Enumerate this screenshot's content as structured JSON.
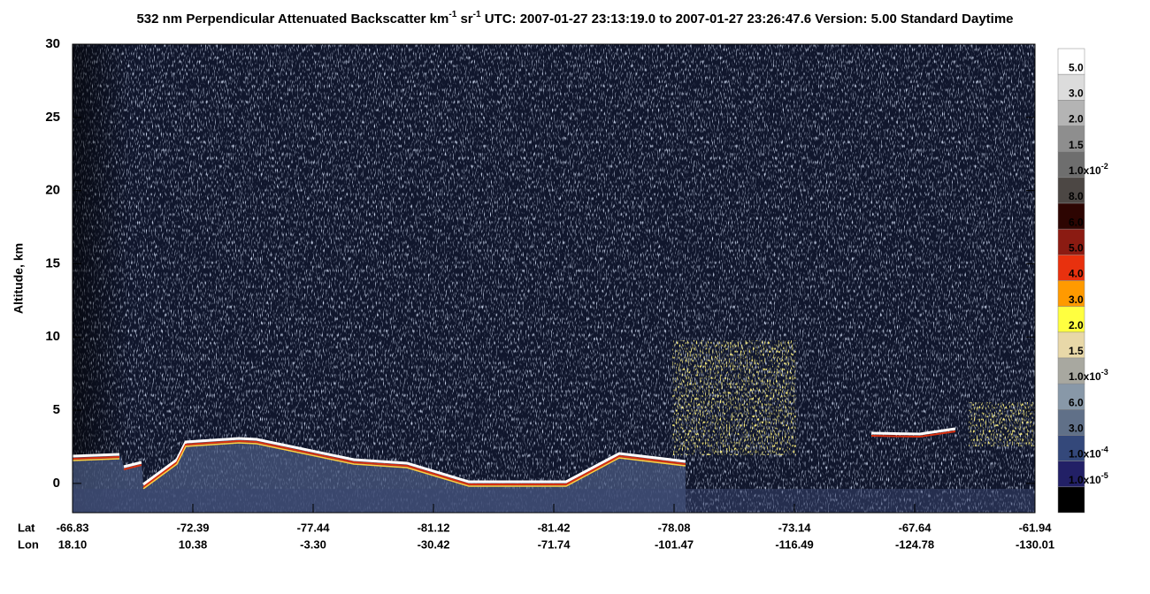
{
  "chart_data": {
    "type": "heatmap",
    "title_parts": [
      {
        "text": "532 nm Perpendicular Attenuated Backscatter km"
      },
      {
        "sup": "-1"
      },
      {
        "text": " sr"
      },
      {
        "sup": "-1"
      },
      {
        "text": "  UTC: 2007-01-27 23:13:19.0 to 2007-01-27 23:26:47.6  Version: 5.00 Standard Daytime"
      }
    ],
    "y_label": "Altitude, km",
    "ylim": [
      -2,
      30
    ],
    "yticks": [
      0,
      5,
      10,
      15,
      20,
      25,
      30
    ],
    "x_row_labels": [
      "Lat",
      "Lon"
    ],
    "xticks": [
      {
        "lat": "-66.83",
        "lon": "18.10"
      },
      {
        "lat": "-72.39",
        "lon": "10.38"
      },
      {
        "lat": "-77.44",
        "lon": "-3.30"
      },
      {
        "lat": "-81.12",
        "lon": "-30.42"
      },
      {
        "lat": "-81.42",
        "lon": "-71.74"
      },
      {
        "lat": "-78.08",
        "lon": "-101.47"
      },
      {
        "lat": "-73.14",
        "lon": "-116.49"
      },
      {
        "lat": "-67.64",
        "lon": "-124.78"
      },
      {
        "lat": "-61.94",
        "lon": "-130.01"
      }
    ],
    "colorbar": {
      "colors": [
        "#ffffff",
        "#dcdcdc",
        "#b4b4b4",
        "#8e8e8e",
        "#6e6e6e",
        "#4c4744",
        "#2d0502",
        "#8b1b12",
        "#e8310e",
        "#ff9a00",
        "#ffff40",
        "#e8d8a8",
        "#a8a8a0",
        "#8898a8",
        "#607088",
        "#34487a",
        "#222066",
        "#000000"
      ],
      "labels": [
        "5.0",
        "3.0",
        "2.0",
        "1.5",
        {
          "text": "1.0x10",
          "sup": "-2"
        },
        "8.0",
        "6.0",
        "5.0",
        "4.0",
        "3.0",
        "2.0",
        "1.5",
        {
          "text": "1.0x10",
          "sup": "-3"
        },
        "6.0",
        "3.0",
        {
          "text": "1.0x10",
          "sup": "-4"
        },
        {
          "text": "1.0x10",
          "sup": "-5"
        }
      ]
    }
  }
}
